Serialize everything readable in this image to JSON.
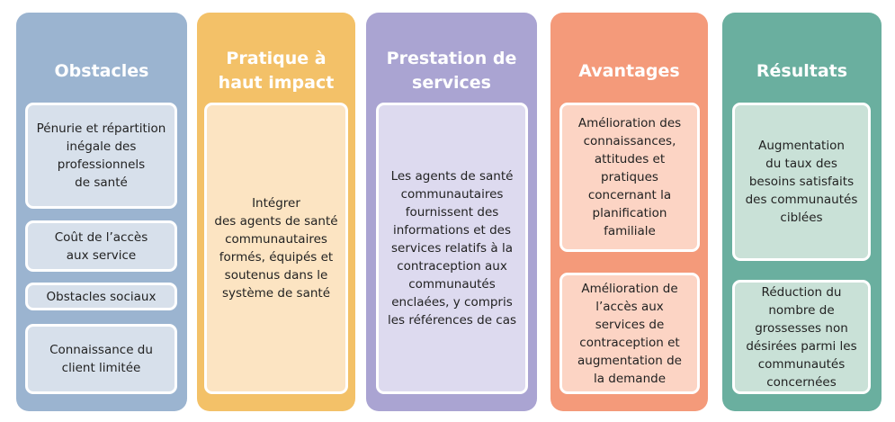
{
  "columns": [
    {
      "title": [
        "Obstacles"
      ],
      "boxes": [
        {
          "lines": [
            "Pénurie et répartition",
            "inégale des",
            "professionnels",
            "de santé"
          ]
        },
        {
          "lines": [
            "Coût de l’accès",
            "aux service"
          ]
        },
        {
          "lines": [
            "Obstacles sociaux"
          ]
        },
        {
          "lines": [
            "Connaissance du",
            "client limitée"
          ]
        }
      ]
    },
    {
      "title": [
        "Pratique à",
        "haut impact"
      ],
      "boxes": [
        {
          "lines": [
            "Intégrer",
            "des agents de santé",
            "communautaires",
            "formés, équipés et",
            "soutenus dans le",
            "système de santé"
          ]
        }
      ]
    },
    {
      "title": [
        "Prestation de",
        "services"
      ],
      "boxes": [
        {
          "lines": [
            "Les agents de santé",
            "communautaires",
            "fournissent des",
            "informations et des",
            "services relatifs à la",
            "contraception aux",
            "communautés",
            "enclaées, y compris",
            "les références de cas"
          ]
        }
      ]
    },
    {
      "title": [
        "Avantages"
      ],
      "boxes": [
        {
          "lines": [
            "Amélioration des",
            "connaissances,",
            "attitudes et",
            "pratiques",
            "concernant la",
            "planification",
            "familiale"
          ]
        },
        {
          "lines": [
            "Amélioration de",
            "l’accès aux",
            "services de",
            "contraception et",
            "augmentation de",
            "la demande"
          ]
        }
      ]
    },
    {
      "title": [
        "Résultats"
      ],
      "boxes": [
        {
          "lines": [
            "Augmentation",
            "du taux des",
            "besoins satisfaits",
            "des communautés",
            "ciblées"
          ]
        },
        {
          "lines": [
            "Réduction du",
            "nombre de",
            "grossesses non",
            "désirées parmi les",
            "communautés",
            "concernées"
          ]
        }
      ]
    }
  ]
}
